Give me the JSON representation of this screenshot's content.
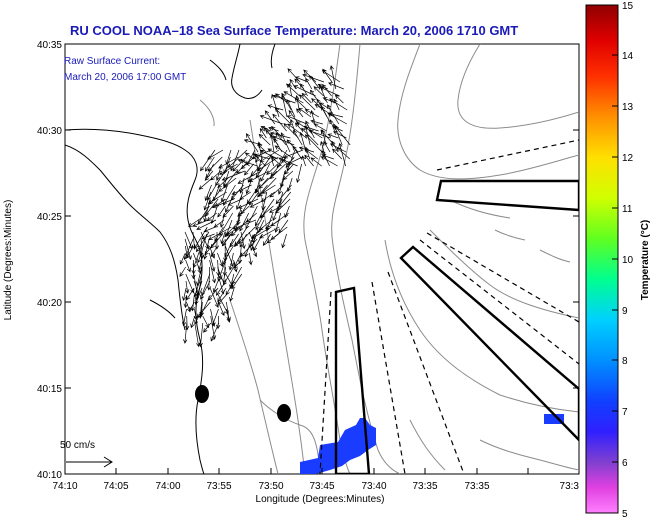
{
  "title": "RU COOL   NOAA–18  Sea Surface Temperature:  March 20, 2006 1710 GMT",
  "annotation": {
    "line1": "Raw Surface Current:",
    "line2": "March 20, 2006 17:00 GMT"
  },
  "scale_label": "50 cm/s",
  "xaxis": {
    "label": "Longitude (Degrees:Minutes)",
    "ticks": [
      "74:10",
      "74:05",
      "74:00",
      "73:55",
      "73:50",
      "73:45",
      "73:40",
      "73:35",
      "73:3"
    ]
  },
  "yaxis": {
    "label": "Latitude (Degrees:Minutes)",
    "ticks": [
      "40:35",
      "40:30",
      "40:25",
      "40:20",
      "40:15",
      "40:10"
    ]
  },
  "colorbar": {
    "label": "Temperature (°C)",
    "ticks": [
      "15",
      "14",
      "13",
      "12",
      "11",
      "10",
      "9",
      "8",
      "7",
      "6",
      "5"
    ],
    "colors": [
      "#ff00ff",
      "#2020ff",
      "#0040ff",
      "#00c0ff",
      "#00ff80",
      "#a0ff00",
      "#ffff00",
      "#ffa000",
      "#ff4000",
      "#d00000",
      "#900000"
    ]
  },
  "colors": {
    "title": "#1a1ab8",
    "sst_patch": "#1a3cff"
  },
  "icons": [
    "vector-arrow-icon"
  ]
}
